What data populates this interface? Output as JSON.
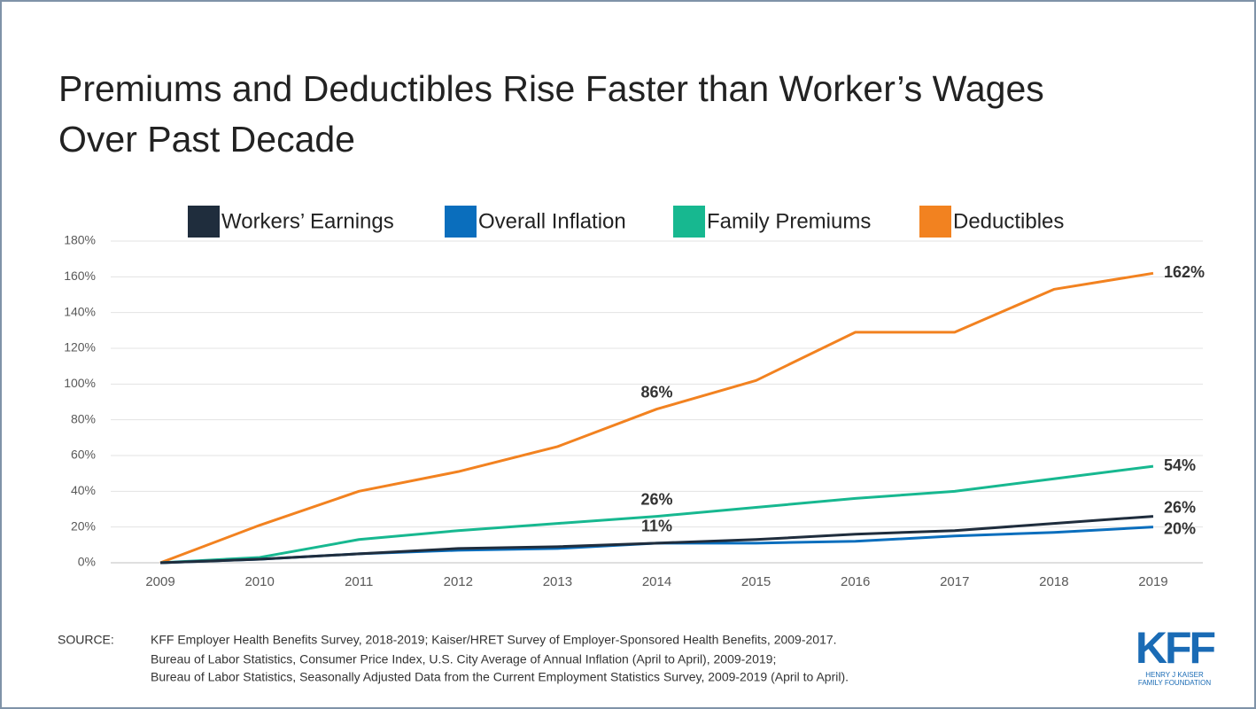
{
  "chart_data": {
    "type": "line",
    "title": [
      "Premiums and Deductibles Rise Faster than Worker’s Wages",
      "Over Past Decade"
    ],
    "categories": [
      "2009",
      "2010",
      "2011",
      "2012",
      "2013",
      "2014",
      "2015",
      "2016",
      "2017",
      "2018",
      "2019"
    ],
    "series": [
      {
        "name": "Workers’ Earnings",
        "color": "#1f2d3d",
        "values": [
          0,
          2,
          5,
          8,
          9,
          11,
          13,
          16,
          18,
          22,
          26
        ],
        "value_labels": [
          null,
          null,
          null,
          null,
          null,
          "11%",
          null,
          null,
          null,
          null,
          "26%"
        ]
      },
      {
        "name": "Overall Inflation",
        "color": "#0a6ebd",
        "values": [
          0,
          2,
          5,
          7,
          8,
          11,
          11,
          12,
          15,
          17,
          20
        ],
        "value_labels": [
          null,
          null,
          null,
          null,
          null,
          null,
          null,
          null,
          null,
          null,
          "20%"
        ]
      },
      {
        "name": "Family Premiums",
        "color": "#17b890",
        "values": [
          0,
          3,
          13,
          18,
          22,
          26,
          31,
          36,
          40,
          47,
          54
        ],
        "value_labels": [
          null,
          null,
          null,
          null,
          null,
          "26%",
          null,
          null,
          null,
          null,
          "54%"
        ]
      },
      {
        "name": "Deductibles",
        "color": "#f28220",
        "values": [
          0,
          21,
          40,
          51,
          65,
          86,
          102,
          129,
          129,
          153,
          162
        ],
        "value_labels": [
          null,
          null,
          null,
          null,
          null,
          "86%",
          null,
          null,
          null,
          null,
          "162%"
        ]
      }
    ],
    "ylim": [
      0,
      180
    ],
    "yticks": [
      {
        "value": 0,
        "label": "0%"
      },
      {
        "value": 20,
        "label": "20%"
      },
      {
        "value": 40,
        "label": "40%"
      },
      {
        "value": 60,
        "label": "60%"
      },
      {
        "value": 80,
        "label": "80%"
      },
      {
        "value": 100,
        "label": "100%"
      },
      {
        "value": 120,
        "label": "120%"
      },
      {
        "value": 140,
        "label": "140%"
      },
      {
        "value": 160,
        "label": "160%"
      },
      {
        "value": 180,
        "label": "180%"
      }
    ],
    "grid": true
  },
  "source": {
    "label": "SOURCE:",
    "lines": [
      "KFF Employer Health Benefits Survey, 2018-2019; Kaiser/HRET Survey of Employer-Sponsored Health Benefits, 2009-2017.",
      "Bureau of Labor Statistics, Consumer Price Index, U.S. City Average of Annual Inflation (April to April), 2009-2019;",
      "Bureau of Labor Statistics, Seasonally Adjusted Data from the Current Employment Statistics Survey, 2009-2019 (April to April)."
    ]
  },
  "logo": {
    "name": "KFF",
    "lines": [
      "HENRY J KAISER",
      "FAMILY FOUNDATION"
    ]
  }
}
